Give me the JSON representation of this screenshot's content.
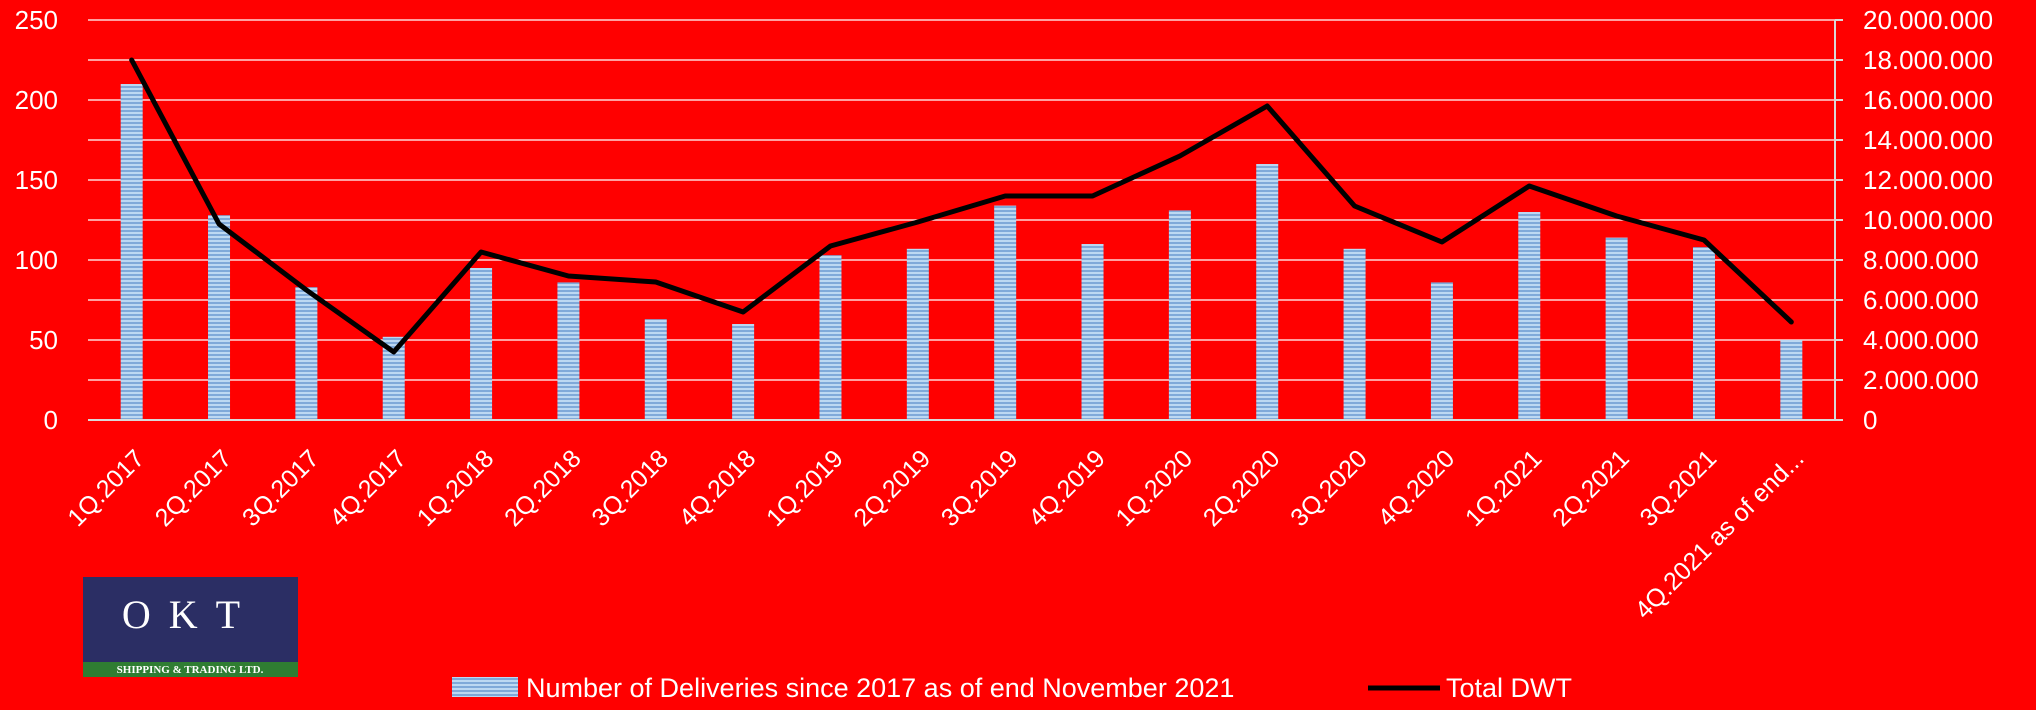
{
  "logo": {
    "wordmark": "OKT",
    "subtitle": "SHIPPING & TRADING LTD.",
    "bg_color": "#2b2e64",
    "stripe_color": "#2f7d32"
  },
  "chart_data": {
    "type": "bar",
    "categories": [
      "1Q.2017",
      "2Q.2017",
      "3Q.2017",
      "4Q.2017",
      "1Q.2018",
      "2Q.2018",
      "3Q.2018",
      "4Q.2018",
      "1Q.2019",
      "2Q.2019",
      "3Q.2019",
      "4Q.2019",
      "1Q.2020",
      "2Q.2020",
      "3Q.2020",
      "4Q.2020",
      "1Q.2021",
      "2Q.2021",
      "3Q.2021",
      "4Q.2021 as of end..."
    ],
    "series": [
      {
        "name": "Number of Deliveries since 2017 as of end November 2021",
        "type": "bar",
        "axis": "left",
        "color": "#9fc5e8",
        "values": [
          210,
          128,
          83,
          52,
          95,
          86,
          63,
          60,
          103,
          107,
          134,
          110,
          131,
          160,
          107,
          86,
          130,
          114,
          108,
          50
        ]
      },
      {
        "name": "Total DWT",
        "type": "line",
        "axis": "right",
        "color": "#000000",
        "values": [
          18000000,
          9800000,
          6500000,
          3400000,
          8400000,
          7200000,
          6900000,
          5400000,
          8700000,
          9900000,
          11200000,
          11200000,
          13200000,
          15700000,
          10700000,
          8900000,
          11700000,
          10200000,
          9000000,
          4900000
        ]
      }
    ],
    "y_left": {
      "min": 0,
      "max": 250,
      "ticks": [
        "0",
        "50",
        "100",
        "150",
        "200",
        "250"
      ]
    },
    "y_right": {
      "min": 0,
      "max": 20000000,
      "ticks": [
        "0",
        "2.000.000",
        "4.000.000",
        "6.000.000",
        "8.000.000",
        "10.000.000",
        "12.000.000",
        "14.000.000",
        "16.000.000",
        "18.000.000",
        "20.000.000"
      ]
    },
    "grid": true,
    "legend_position": "bottom",
    "background": "#ff0000"
  }
}
